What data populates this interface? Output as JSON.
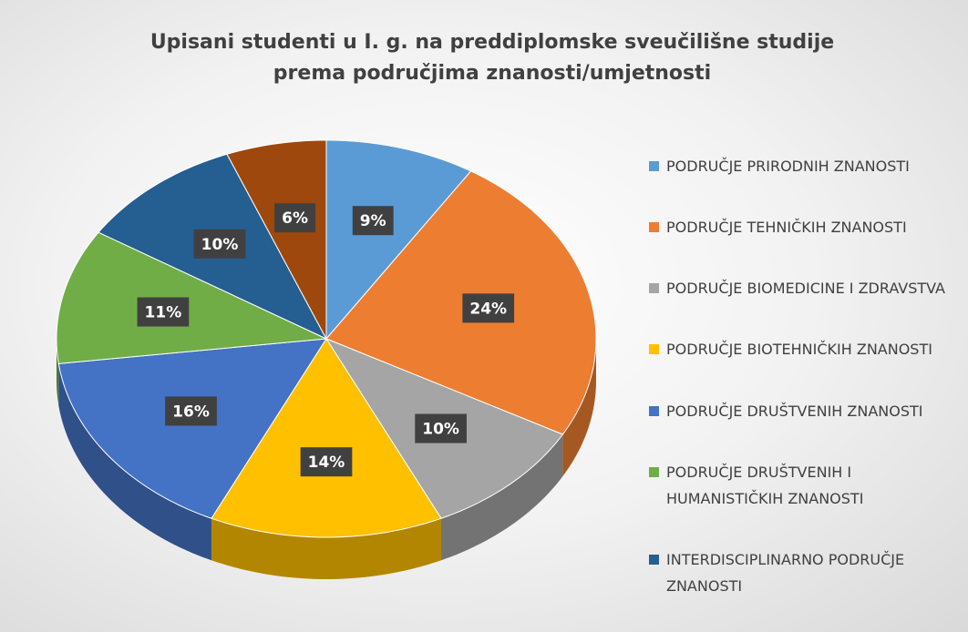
{
  "chart_data": {
    "type": "pie3d",
    "title": "Upisani studenti u I. g. na preddiplomske sveučilišne studije\nprema područjima znanosti/umjetnosti",
    "categories": [
      "PODRUČJE PRIRODNIH ZNANOSTI",
      "PODRUČJE TEHNIČKIH ZNANOSTI",
      "PODRUČJE BIOMEDICINE I ZDRAVSTVA",
      "PODRUČJE BIOTEHNIČKIH ZNANOSTI",
      "PODRUČJE DRUŠTVENIH ZNANOSTI",
      "PODRUČJE DRUŠTVENIH I HUMANISTIČKIH ZNANOSTI",
      "INTERDISCIPLINARNO PODRUČJE ZNANOSTI",
      null
    ],
    "values": [
      9,
      24,
      10,
      14,
      16,
      11,
      10,
      6
    ],
    "value_labels": [
      "9%",
      "24%",
      "10%",
      "14%",
      "16%",
      "11%",
      "10%",
      "6%"
    ],
    "colors": [
      "#5b9bd5",
      "#ed7d31",
      "#a5a5a5",
      "#ffc000",
      "#4472c4",
      "#70ad47",
      "#255e91",
      "#9e480e"
    ],
    "legend": "right"
  }
}
